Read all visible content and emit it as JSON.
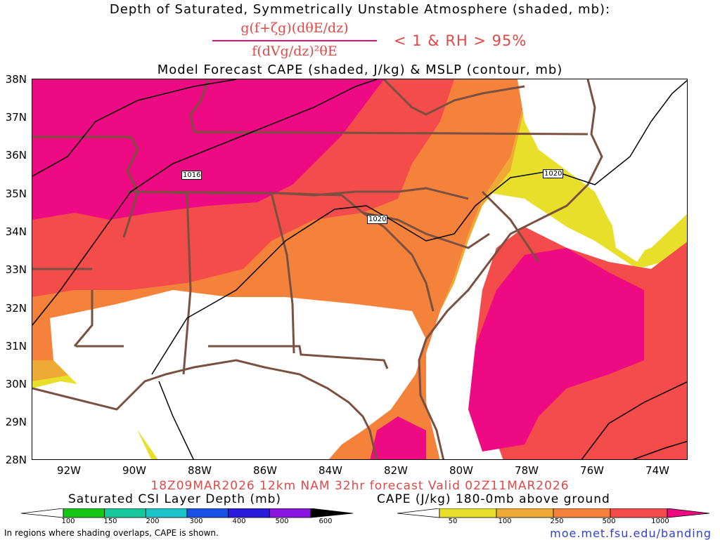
{
  "header": {
    "line1": "Depth of Saturated, Symmetrically Unstable Atmosphere (shaded, mb):",
    "numerator": "g(f+ζg)(dθE/dz)",
    "denominator": "f(dVg/dz)²θE",
    "condition": "< 1 & RH > 95%",
    "line3": "Model Forecast CAPE (shaded, J/kg) & MSLP (contour, mb)"
  },
  "axes": {
    "lat_labels": [
      "38N",
      "37N",
      "36N",
      "35N",
      "34N",
      "33N",
      "32N",
      "31N",
      "30N",
      "29N",
      "28N"
    ],
    "lon_labels": [
      "92W",
      "90W",
      "88W",
      "86W",
      "84W",
      "82W",
      "80W",
      "78W",
      "76W",
      "74W"
    ]
  },
  "isobars": {
    "labels": [
      "1016",
      "1020",
      "1020"
    ]
  },
  "valid_line": "18Z09MAR2026 12km NAM 32hr forecast Valid 02Z11MAR2026",
  "colorbar_csi": {
    "title": "Saturated CSI Layer Depth (mb)",
    "ticks": [
      "100",
      "150",
      "200",
      "300",
      "400",
      "500",
      "600"
    ],
    "colors": [
      "#ffffff",
      "#16c516",
      "#18c89a",
      "#19c3c8",
      "#1a50e8",
      "#2a1adb",
      "#8a14e0",
      "#000000"
    ]
  },
  "colorbar_cape": {
    "title": "CAPE (J/kg) 180-0mb above ground",
    "ticks": [
      "50",
      "100",
      "250",
      "500",
      "1000"
    ],
    "colors": [
      "#ffffff",
      "#e7df2a",
      "#eeaa34",
      "#f5823a",
      "#f44c4a",
      "#ee0a82"
    ]
  },
  "footer": {
    "note": "In regions where shading overlaps, CAPE is shown.",
    "url": "moe.met.fsu.edu/banding"
  },
  "map_colors": {
    "cape_lt100": "#e7df2a",
    "cape_100_250": "#eeaa34",
    "cape_250_500": "#f5823a",
    "cape_500_1000": "#f44c4a",
    "cape_gt1000": "#ee0a82",
    "borders": "#7a5040"
  }
}
